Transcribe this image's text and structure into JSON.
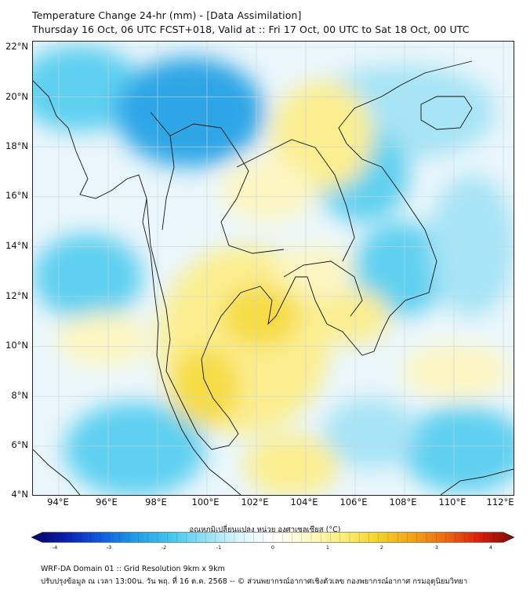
{
  "header": {
    "title_line1": "Temperature Change 24-hr (mm) - [Data Assimilation]",
    "title_line2": "Thursday 16 Oct, 06 UTC FCST+018, Valid at :: Fri 17 Oct, 00 UTC to Sat 18 Oct, 00 UTC"
  },
  "axes": {
    "lat_labels": [
      "22°N",
      "20°N",
      "18°N",
      "16°N",
      "14°N",
      "12°N",
      "10°N",
      "8°N",
      "6°N",
      "4°N"
    ],
    "lon_labels": [
      "94°E",
      "96°E",
      "98°E",
      "100°E",
      "102°E",
      "104°E",
      "106°E",
      "108°E",
      "110°E",
      "112°E"
    ]
  },
  "colorbar": {
    "title": "อุณหภูมิเปลี่ยนแปลง หน่วย องศาเซลเซียส (°C)",
    "ticks": [
      "-4",
      "-3",
      "-2",
      "-1",
      "0",
      "1",
      "2",
      "3",
      "4"
    ],
    "colors": [
      "#08045e",
      "#0a1fb0",
      "#0f5ae0",
      "#1f9be8",
      "#3fc6ef",
      "#8fe0f5",
      "#d9f4fb",
      "#ffffff",
      "#fff9c8",
      "#fbee7a",
      "#f5d52a",
      "#f3a516",
      "#ee6a10",
      "#d91d0b",
      "#7a0a06"
    ]
  },
  "footer": {
    "line1": "WRF-DA Domain 01 :: Grid Resolution 9km x 9km",
    "line2": "ปรับปรุงข้อมูล ณ เวลา 13:00น. วัน พฤ. ที่ 16 ต.ค. 2568 -- © ส่วนพยากรณ์อากาศเชิงตัวเลข กองพยากรณ์อากาศ กรมอุตุนิยมวิทยา"
  },
  "map_colors": {
    "background": "#eaf6fb",
    "cyan": "#5fd0f0",
    "light_cyan": "#a6e4f6",
    "blue": "#2fa6e6",
    "yellow": "#fbee90",
    "light_yellow": "#fdf6c2",
    "deep_yellow": "#f7dc45",
    "coast": "#111111"
  }
}
